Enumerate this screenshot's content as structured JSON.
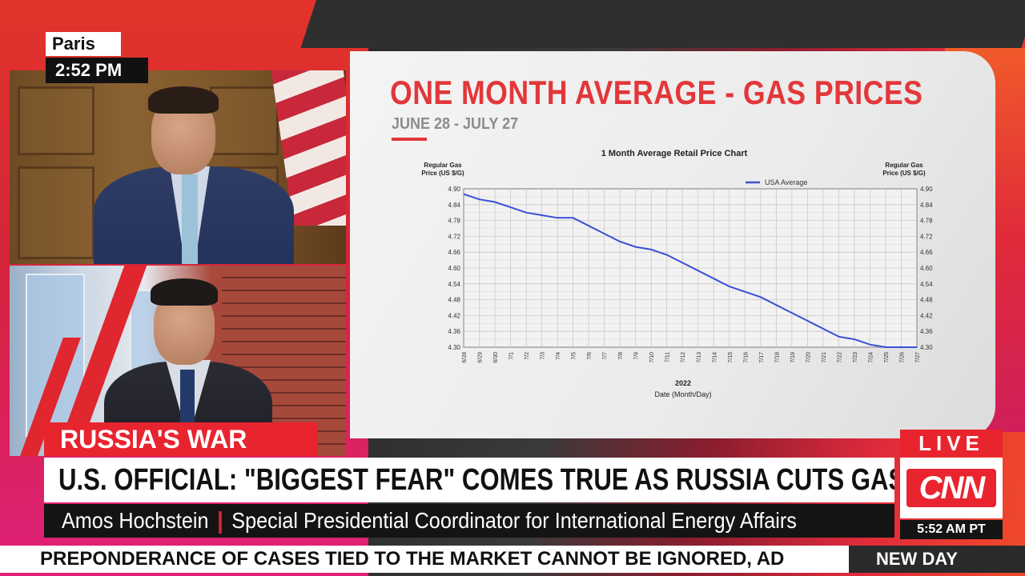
{
  "location": {
    "city": "Paris",
    "local_time": "2:52 PM"
  },
  "chart_panel": {
    "headline": "ONE MONTH AVERAGE - GAS PRICES",
    "date_range": "JUNE 28 - JULY 27"
  },
  "chart_data": {
    "type": "line",
    "title": "1 Month Average Retail Price Chart",
    "ylabel_left": "Regular Gas Price (US $/G)",
    "ylabel_right": "Regular Gas Price (US $/G)",
    "xlabel_year": "2022",
    "xlabel": "Date (Month/Day)",
    "ylim": [
      4.3,
      4.9
    ],
    "yticks": [
      "4.90",
      "4.84",
      "4.78",
      "4.72",
      "4.66",
      "4.60",
      "4.54",
      "4.48",
      "4.42",
      "4.36",
      "4.30"
    ],
    "x": [
      "6/28",
      "6/29",
      "6/30",
      "7/1",
      "7/2",
      "7/3",
      "7/4",
      "7/5",
      "7/6",
      "7/7",
      "7/8",
      "7/9",
      "7/10",
      "7/11",
      "7/12",
      "7/13",
      "7/14",
      "7/15",
      "7/16",
      "7/17",
      "7/18",
      "7/19",
      "7/20",
      "7/21",
      "7/22",
      "7/23",
      "7/24",
      "7/25",
      "7/26",
      "7/27"
    ],
    "series": [
      {
        "name": "USA Average",
        "color": "#3a4fd6",
        "values": [
          4.88,
          4.86,
          4.85,
          4.83,
          4.81,
          4.8,
          4.79,
          4.79,
          4.76,
          4.73,
          4.7,
          4.68,
          4.67,
          4.65,
          4.62,
          4.59,
          4.56,
          4.53,
          4.51,
          4.49,
          4.46,
          4.43,
          4.4,
          4.37,
          4.34,
          4.33,
          4.31,
          4.3,
          4.3,
          4.3
        ]
      }
    ],
    "legend_position": "top-right",
    "grid": true
  },
  "lower_third": {
    "topic": "RUSSIA'S WAR",
    "headline": "U.S. OFFICIAL: \"BIGGEST FEAR\" COMES TRUE AS RUSSIA CUTS GAS TO EUROPE",
    "guest_name": "Amos Hochstein",
    "guest_title": "Special Presidential Coordinator for International Energy Affairs"
  },
  "bug": {
    "live": "LIVE",
    "network": "CNN",
    "clock": "5:52 AM PT"
  },
  "ticker": {
    "text": "PREPONDERANCE OF CASES TIED TO THE MARKET CANNOT BE IGNORED, AD",
    "show": "NEW DAY"
  },
  "colors": {
    "brand_red": "#e8242e",
    "headline_red": "#e2373a",
    "series_blue": "#3a4fd6"
  }
}
